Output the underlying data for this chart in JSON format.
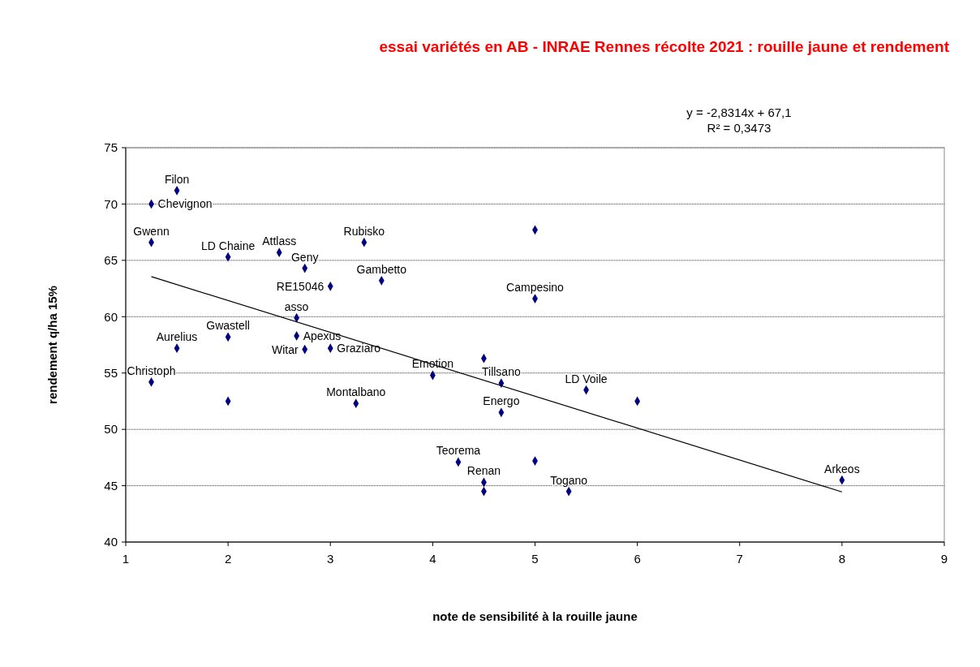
{
  "chart_data": {
    "type": "scatter",
    "title": "essai variétés en AB - INRAE Rennes récolte 2021 : rouille jaune et rendement",
    "xlabel": "note de sensibilité à la rouille jaune",
    "ylabel": "rendement q/ha 15%",
    "xlim": [
      1,
      9
    ],
    "xticks": [
      1,
      2,
      3,
      4,
      5,
      6,
      7,
      8,
      9
    ],
    "ylim": [
      40,
      75
    ],
    "yticks": [
      40,
      45,
      50,
      55,
      60,
      65,
      70,
      75
    ],
    "grid": "y",
    "marker": "diamond",
    "series": [
      {
        "type": "scatter",
        "color": "#000080",
        "x": [
          1.25,
          1.5,
          1.25,
          2,
          2.5,
          2.75,
          3,
          3.33,
          3.5,
          5,
          5,
          2.67,
          2.67,
          2.75,
          3,
          1.5,
          2,
          1.25,
          2,
          3.25,
          4,
          4.5,
          4.67,
          5.5,
          6,
          4.67,
          4.25,
          5,
          4.5,
          4.5,
          5.33,
          8
        ],
        "values": [
          70.0,
          71.2,
          66.6,
          65.3,
          65.7,
          64.3,
          62.7,
          66.6,
          63.2,
          67.7,
          61.6,
          59.9,
          58.3,
          57.1,
          57.2,
          57.2,
          58.2,
          54.2,
          52.5,
          52.3,
          54.8,
          56.3,
          54.1,
          53.5,
          52.5,
          51.5,
          47.1,
          47.2,
          45.3,
          44.5,
          44.5,
          45.5
        ]
      },
      {
        "type": "line",
        "color": "#000000",
        "marker": "none",
        "x": [
          1.25,
          8
        ],
        "values": [
          63.56,
          44.45
        ]
      }
    ],
    "annotations": [
      "y = -2,8314x + 67,1",
      "R² = 0,3473",
      {
        "text": "Chevignon",
        "x": 1.25,
        "y": 70.0
      },
      {
        "text": "Filon",
        "x": 1.5,
        "y": 71.2
      },
      {
        "text": "Gwenn",
        "x": 1.25,
        "y": 66.6
      },
      {
        "text": "LD Chaine",
        "x": 2,
        "y": 65.3
      },
      {
        "text": "Attlass",
        "x": 2.5,
        "y": 65.7
      },
      {
        "text": "Geny",
        "x": 2.75,
        "y": 64.3
      },
      {
        "text": "RE15046",
        "x": 3,
        "y": 62.7
      },
      {
        "text": "Rubisko",
        "x": 3.33,
        "y": 66.6
      },
      {
        "text": "Gambetto",
        "x": 3.5,
        "y": 63.2
      },
      {
        "text": "Campesino",
        "x": 5,
        "y": 61.6
      },
      {
        "text": "asso",
        "x": 2.67,
        "y": 59.9
      },
      {
        "text": "Apexus",
        "x": 2.67,
        "y": 58.3
      },
      {
        "text": "Witar",
        "x": 2.75,
        "y": 57.1
      },
      {
        "text": "Graziaro",
        "x": 3,
        "y": 57.2
      },
      {
        "text": "Aurelius",
        "x": 1.5,
        "y": 57.2
      },
      {
        "text": "Gwastell",
        "x": 2,
        "y": 58.2
      },
      {
        "text": "Christoph",
        "x": 1.25,
        "y": 54.2
      },
      {
        "text": "Montalbano",
        "x": 3.25,
        "y": 52.3
      },
      {
        "text": "Emotion",
        "x": 4,
        "y": 54.8
      },
      {
        "text": "Tillsano",
        "x": 4.67,
        "y": 54.1
      },
      {
        "text": "LD Voile",
        "x": 5.5,
        "y": 53.5
      },
      {
        "text": "Energo",
        "x": 4.67,
        "y": 51.5
      },
      {
        "text": "Teorema",
        "x": 4.25,
        "y": 47.1
      },
      {
        "text": "Renan",
        "x": 4.5,
        "y": 45.3
      },
      {
        "text": "Togano",
        "x": 5.33,
        "y": 44.5
      },
      {
        "text": "Arkeos",
        "x": 8,
        "y": 45.5
      }
    ]
  }
}
